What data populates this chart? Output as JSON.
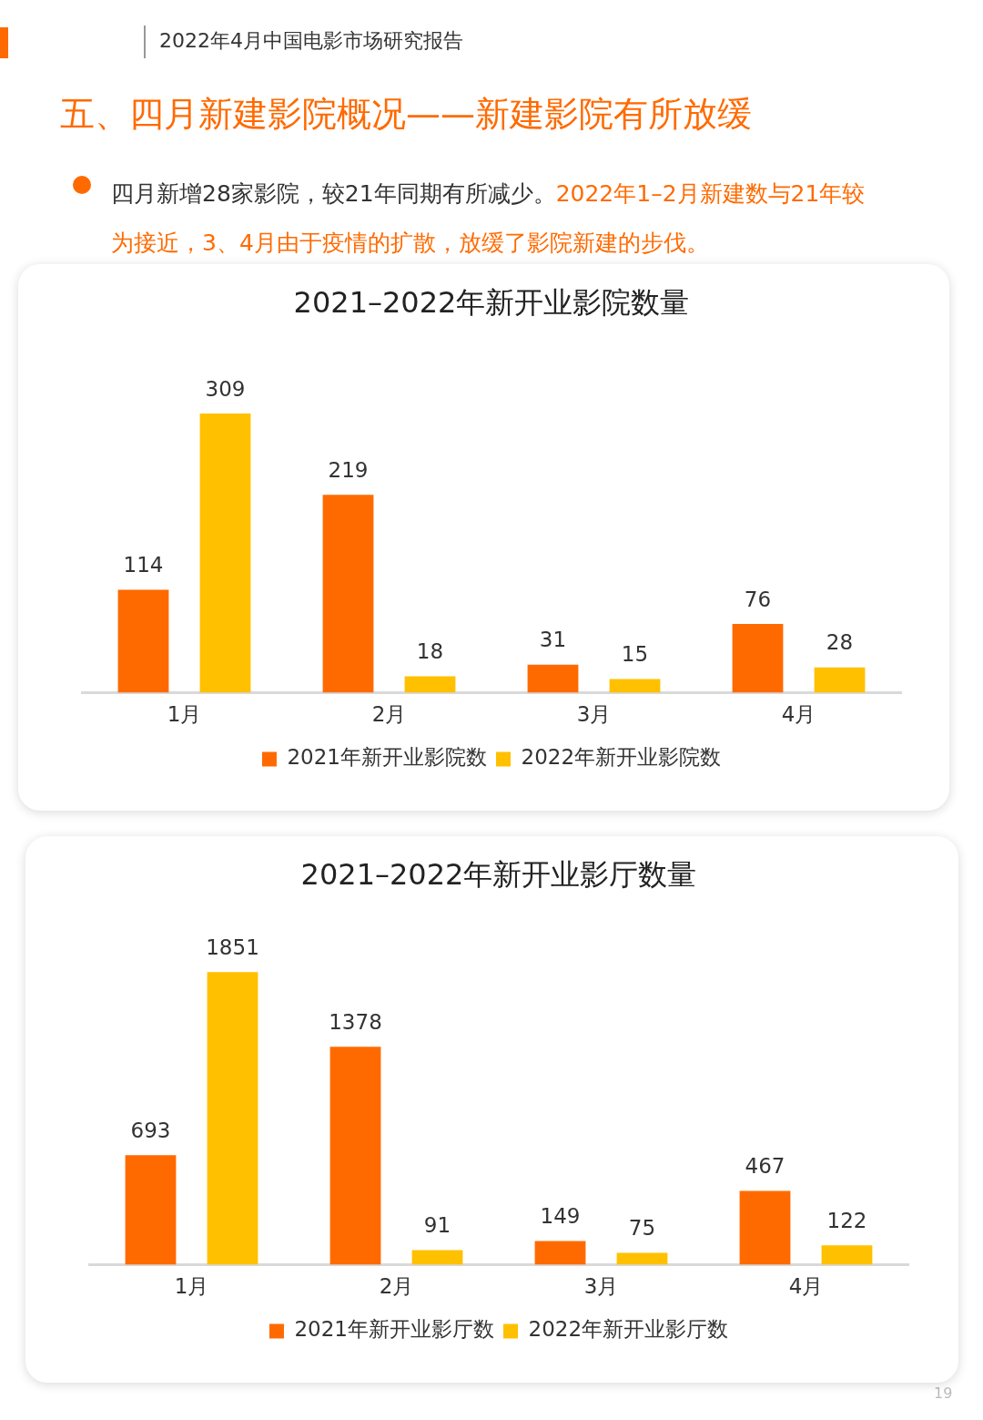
{
  "chart_data": [
    {
      "type": "bar",
      "title": "2021–2022年新开业影院数量",
      "categories": [
        "1月",
        "2月",
        "3月",
        "4月"
      ],
      "series": [
        {
          "name": "2021年新开业影院数",
          "color": "#ff6a00",
          "values": [
            114,
            219,
            31,
            76
          ]
        },
        {
          "name": "2022年新开业影院数",
          "color": "#ffc000",
          "values": [
            309,
            18,
            15,
            28
          ]
        }
      ],
      "data_labels": true,
      "legend": "bottom",
      "grid": false,
      "annotations": [
        "2022年4月中国电影市场研究报告",
        "五、四月新建影院概况——新建影院有所放缓",
        "四月新增28家影院，较21年同期有所减少。",
        "2022年1–2月新建数与21年较为接近，3、4月由于疫情的扩散，放缓了影院新建的步伐。"
      ]
    },
    {
      "type": "bar",
      "title": "2021–2022年新开业影厅数量",
      "categories": [
        "1月",
        "2月",
        "3月",
        "4月"
      ],
      "series": [
        {
          "name": "2021年新开业影厅数",
          "color": "#ff6a00",
          "values": [
            693,
            1378,
            149,
            467
          ]
        },
        {
          "name": "2022年新开业影厅数",
          "color": "#ffc000",
          "values": [
            1851,
            91,
            75,
            122
          ]
        }
      ],
      "data_labels": true,
      "legend": "bottom",
      "grid": false,
      "annotations": [
        "19"
      ]
    }
  ]
}
